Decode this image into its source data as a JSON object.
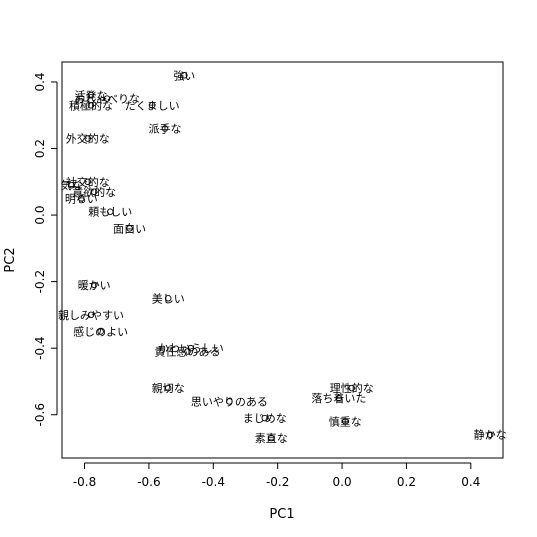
{
  "chart_data": {
    "type": "scatter",
    "title": "",
    "xlabel": "PC1",
    "ylabel": "PC2",
    "xlim": [
      -0.87,
      0.5
    ],
    "ylim": [
      -0.73,
      0.46
    ],
    "xticks": [
      -0.8,
      -0.6,
      -0.4,
      -0.2,
      0.0,
      0.2,
      0.4
    ],
    "yticks": [
      -0.6,
      -0.4,
      -0.2,
      0.0,
      0.2,
      0.4
    ],
    "grid": false,
    "points": [
      {
        "x": -0.49,
        "y": 0.42,
        "label": "強い"
      },
      {
        "x": -0.78,
        "y": 0.36,
        "label": "活発な"
      },
      {
        "x": -0.73,
        "y": 0.35,
        "label": "おしゃべりな"
      },
      {
        "x": -0.59,
        "y": 0.33,
        "label": "たくましい"
      },
      {
        "x": -0.78,
        "y": 0.33,
        "label": "積極的な"
      },
      {
        "x": -0.55,
        "y": 0.26,
        "label": "派手な"
      },
      {
        "x": -0.79,
        "y": 0.23,
        "label": "外交的な"
      },
      {
        "x": -0.79,
        "y": 0.1,
        "label": "社交的な"
      },
      {
        "x": -0.84,
        "y": 0.09,
        "label": "気な"
      },
      {
        "x": -0.77,
        "y": 0.07,
        "label": "意欲的な"
      },
      {
        "x": -0.81,
        "y": 0.05,
        "label": "明るい"
      },
      {
        "x": -0.72,
        "y": 0.01,
        "label": "頼もしい"
      },
      {
        "x": -0.66,
        "y": -0.04,
        "label": "面白い"
      },
      {
        "x": -0.77,
        "y": -0.21,
        "label": "暖かい"
      },
      {
        "x": -0.54,
        "y": -0.25,
        "label": "美しい"
      },
      {
        "x": -0.78,
        "y": -0.3,
        "label": "親しみやすい"
      },
      {
        "x": -0.75,
        "y": -0.35,
        "label": "感じのよい"
      },
      {
        "x": -0.47,
        "y": -0.4,
        "label": "かわいらしい"
      },
      {
        "x": -0.48,
        "y": -0.41,
        "label": "責任感のある"
      },
      {
        "x": 0.03,
        "y": -0.52,
        "label": "理性的な"
      },
      {
        "x": -0.54,
        "y": -0.52,
        "label": "親切な"
      },
      {
        "x": -0.35,
        "y": -0.56,
        "label": "思いやりのある"
      },
      {
        "x": -0.01,
        "y": -0.55,
        "label": "落ち着いた"
      },
      {
        "x": -0.24,
        "y": -0.61,
        "label": "まじめな"
      },
      {
        "x": 0.01,
        "y": -0.62,
        "label": "慎重な"
      },
      {
        "x": -0.22,
        "y": -0.67,
        "label": "素直な"
      },
      {
        "x": 0.46,
        "y": -0.66,
        "label": "静かな"
      }
    ]
  }
}
